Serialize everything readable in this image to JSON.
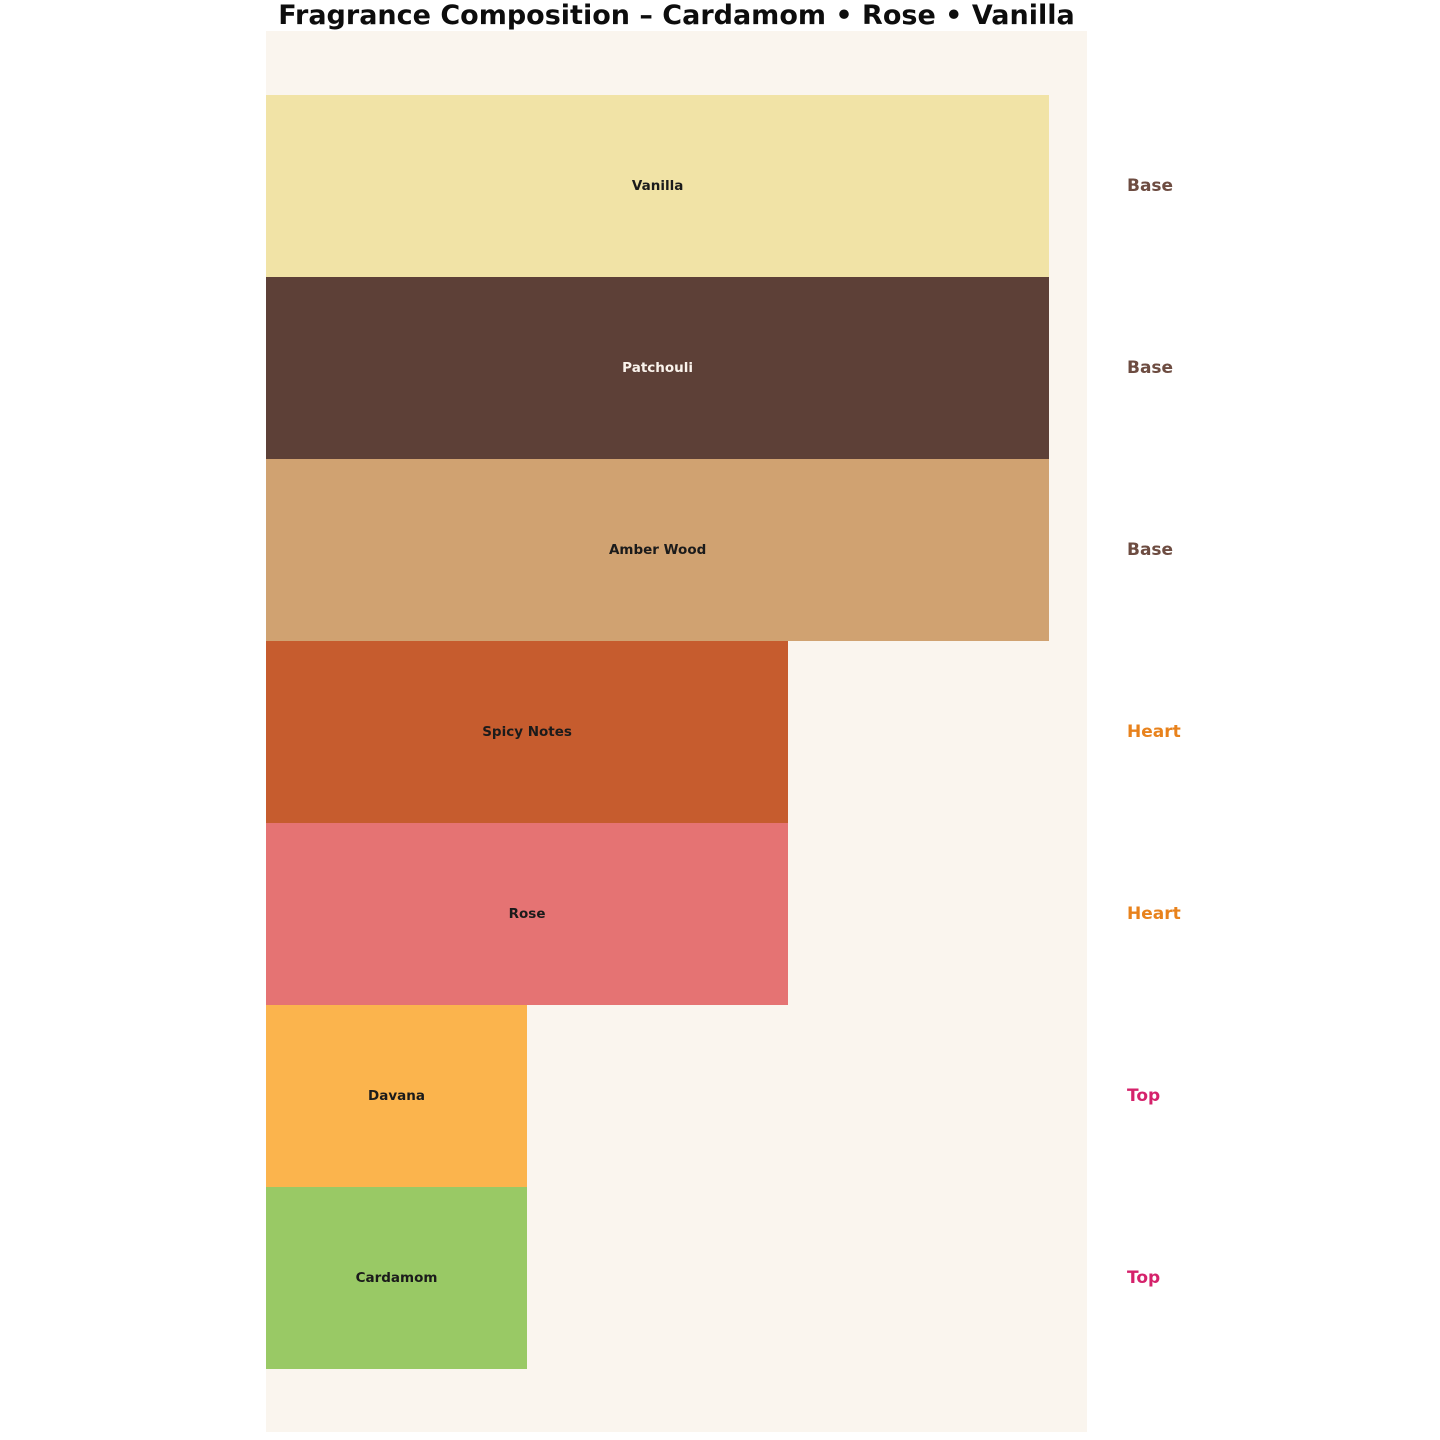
{
  "title": "Fragrance Composition – Cardamom • Rose • Vanilla",
  "colors": {
    "page_bg": "#FFFFFF",
    "plot_bg": "#FAF5EE",
    "title_text": "#0D0D0D"
  },
  "chart_data": {
    "type": "bar",
    "orientation": "horizontal",
    "title": "Fragrance Composition – Cardamom • Rose • Vanilla",
    "categories": [
      "Vanilla",
      "Patchouli",
      "Amber Wood",
      "Spicy Notes",
      "Rose",
      "Davana",
      "Cardamom"
    ],
    "values": [
      3,
      3,
      3,
      2,
      2,
      1,
      1
    ],
    "levels": [
      "Base",
      "Base",
      "Base",
      "Heart",
      "Heart",
      "Top",
      "Top"
    ],
    "bar_colors": [
      "#F1E3A6",
      "#5D4037",
      "#D0A271",
      "#C65C2E",
      "#E57373",
      "#FBB44D",
      "#99C965"
    ],
    "xlabel": "",
    "ylabel": "",
    "xlim": [
      0,
      3.15
    ],
    "grid": false,
    "legend": false,
    "axes_visible": false,
    "bar_order": "top-to-bottom",
    "plot_background": "#FAF5EE"
  },
  "bars": [
    {
      "label": "Vanilla",
      "value": 3,
      "width_pct": "95.4%",
      "color": "#F1E3A6",
      "label_color": "#1B1B1B",
      "level": "Base",
      "level_color": "#6D4C41"
    },
    {
      "label": "Patchouli",
      "value": 3,
      "width_pct": "95.4%",
      "color": "#5D4037",
      "label_color": "#FAF3EC",
      "level": "Base",
      "level_color": "#6D4C41"
    },
    {
      "label": "Amber Wood",
      "value": 3,
      "width_pct": "95.4%",
      "color": "#D0A271",
      "label_color": "#1B1B1B",
      "level": "Base",
      "level_color": "#6D4C41"
    },
    {
      "label": "Spicy Notes",
      "value": 2,
      "width_pct": "63.6%",
      "color": "#C65C2E",
      "label_color": "#1B1B1B",
      "level": "Heart",
      "level_color": "#E8821C"
    },
    {
      "label": "Rose",
      "value": 2,
      "width_pct": "63.6%",
      "color": "#E57373",
      "label_color": "#1B1B1B",
      "level": "Heart",
      "level_color": "#E8821C"
    },
    {
      "label": "Davana",
      "value": 1,
      "width_pct": "31.8%",
      "color": "#FBB44D",
      "label_color": "#1B1B1B",
      "level": "Top",
      "level_color": "#D5226B"
    },
    {
      "label": "Cardamom",
      "value": 1,
      "width_pct": "31.8%",
      "color": "#99C965",
      "label_color": "#1B1B1B",
      "level": "Top",
      "level_color": "#D5226B"
    }
  ]
}
